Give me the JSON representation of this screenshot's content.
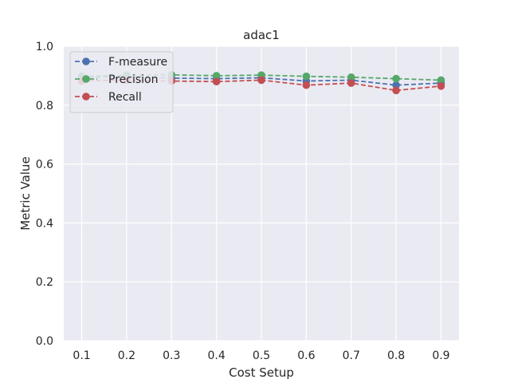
{
  "chart_data": {
    "type": "line",
    "title": "adac1",
    "xlabel": "Cost Setup",
    "ylabel": "Metric Value",
    "x": [
      0.1,
      0.2,
      0.3,
      0.4,
      0.5,
      0.6,
      0.7,
      0.8,
      0.9
    ],
    "x_tick_labels": [
      "0.1",
      "0.2",
      "0.3",
      "0.4",
      "0.5",
      "0.6",
      "0.7",
      "0.8",
      "0.9"
    ],
    "y_ticks": [
      0.0,
      0.2,
      0.4,
      0.6,
      0.8,
      1.0
    ],
    "y_tick_labels": [
      "0.0",
      "0.2",
      "0.4",
      "0.6",
      "0.8",
      "1.0"
    ],
    "xlim": [
      0.06,
      0.94
    ],
    "ylim": [
      0.0,
      1.0
    ],
    "grid": true,
    "legend_position": "top-left",
    "series": [
      {
        "name": "F-measure",
        "color": "#4c72b0",
        "values": [
          0.895,
          0.897,
          0.892,
          0.89,
          0.893,
          0.882,
          0.885,
          0.868,
          0.875
        ]
      },
      {
        "name": "Precision",
        "color": "#55a868",
        "values": [
          0.898,
          0.902,
          0.903,
          0.9,
          0.902,
          0.898,
          0.895,
          0.89,
          0.885
        ]
      },
      {
        "name": "Recall",
        "color": "#c44e52",
        "values": [
          0.882,
          0.885,
          0.882,
          0.88,
          0.885,
          0.868,
          0.875,
          0.85,
          0.865
        ]
      }
    ]
  }
}
